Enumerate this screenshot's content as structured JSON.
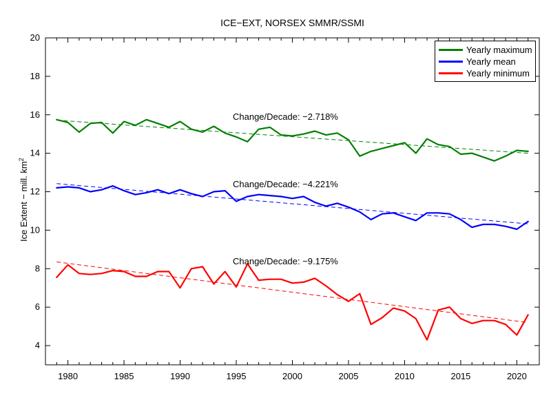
{
  "title": "ICE−EXT, NORSEX SMMR/SSMI",
  "ylabel": {
    "text": "Ice Extent − mill. km",
    "sup": "2"
  },
  "legend": [
    {
      "label": "Yearly maximum",
      "color": "#008000"
    },
    {
      "label": "Yearly mean",
      "color": "#0000ff"
    },
    {
      "label": "Yearly minimum",
      "color": "#ff0000"
    }
  ],
  "annotations": [
    {
      "text": "Change/Decade: −2.718%"
    },
    {
      "text": "Change/Decade: −4.221%"
    },
    {
      "text": "Change/Decade: −9.175%"
    }
  ],
  "chart_data": {
    "type": "line",
    "title": "ICE−EXT, NORSEX SMMR/SSMI",
    "ylabel": "Ice Extent − mill. km2",
    "xlim": [
      1978,
      2022
    ],
    "ylim": [
      3,
      20
    ],
    "xticks": [
      1980,
      1985,
      1990,
      1995,
      2000,
      2005,
      2010,
      2015,
      2020
    ],
    "yticks": [
      4,
      6,
      8,
      10,
      12,
      14,
      16,
      18,
      20
    ],
    "minor_ticks_x_every": 1,
    "grid": false,
    "legend_position": "top-right",
    "x": [
      1979,
      1980,
      1981,
      1982,
      1983,
      1984,
      1985,
      1986,
      1987,
      1988,
      1989,
      1990,
      1991,
      1992,
      1993,
      1994,
      1995,
      1996,
      1997,
      1998,
      1999,
      2000,
      2001,
      2002,
      2003,
      2004,
      2005,
      2006,
      2007,
      2008,
      2009,
      2010,
      2011,
      2012,
      2013,
      2014,
      2015,
      2016,
      2017,
      2018,
      2019,
      2020,
      2021
    ],
    "series": [
      {
        "name": "Yearly maximum",
        "color": "#008000",
        "change_per_decade_pct": -2.718,
        "values": [
          15.75,
          15.6,
          15.1,
          15.55,
          15.6,
          15.05,
          15.65,
          15.45,
          15.75,
          15.55,
          15.35,
          15.65,
          15.25,
          15.1,
          15.4,
          15.05,
          14.85,
          14.6,
          15.25,
          15.35,
          14.95,
          14.9,
          15.0,
          15.15,
          14.95,
          15.05,
          14.7,
          13.85,
          14.1,
          14.25,
          14.4,
          14.55,
          14.0,
          14.75,
          14.45,
          14.35,
          13.95,
          14.0,
          13.8,
          13.6,
          13.85,
          14.15,
          14.1
        ],
        "trend": {
          "x0": 1979,
          "y0": 15.72,
          "x1": 2021,
          "y1": 14.0
        }
      },
      {
        "name": "Yearly mean",
        "color": "#0000ff",
        "change_per_decade_pct": -4.221,
        "values": [
          12.2,
          12.25,
          12.2,
          12.0,
          12.1,
          12.3,
          12.05,
          11.85,
          11.95,
          12.1,
          11.9,
          12.1,
          11.9,
          11.75,
          12.0,
          12.05,
          11.5,
          11.75,
          11.85,
          11.8,
          11.75,
          11.65,
          11.75,
          11.45,
          11.25,
          11.4,
          11.2,
          10.95,
          10.55,
          10.85,
          10.9,
          10.7,
          10.5,
          10.9,
          10.9,
          10.85,
          10.55,
          10.15,
          10.3,
          10.3,
          10.2,
          10.05,
          10.45
        ],
        "trend": {
          "x0": 1979,
          "y0": 12.42,
          "x1": 2021,
          "y1": 10.33
        }
      },
      {
        "name": "Yearly minimum",
        "color": "#ff0000",
        "change_per_decade_pct": -9.175,
        "values": [
          7.55,
          8.2,
          7.75,
          7.7,
          7.75,
          7.9,
          7.85,
          7.6,
          7.6,
          7.85,
          7.85,
          7.0,
          8.0,
          8.1,
          7.2,
          7.85,
          7.05,
          8.25,
          7.4,
          7.45,
          7.45,
          7.25,
          7.3,
          7.5,
          7.1,
          6.65,
          6.3,
          6.7,
          5.1,
          5.45,
          5.95,
          5.8,
          5.4,
          4.3,
          5.85,
          6.0,
          5.4,
          5.15,
          5.3,
          5.3,
          5.1,
          4.55,
          5.6
        ],
        "trend": {
          "x0": 1979,
          "y0": 8.35,
          "x1": 2021,
          "y1": 5.2
        }
      }
    ]
  }
}
